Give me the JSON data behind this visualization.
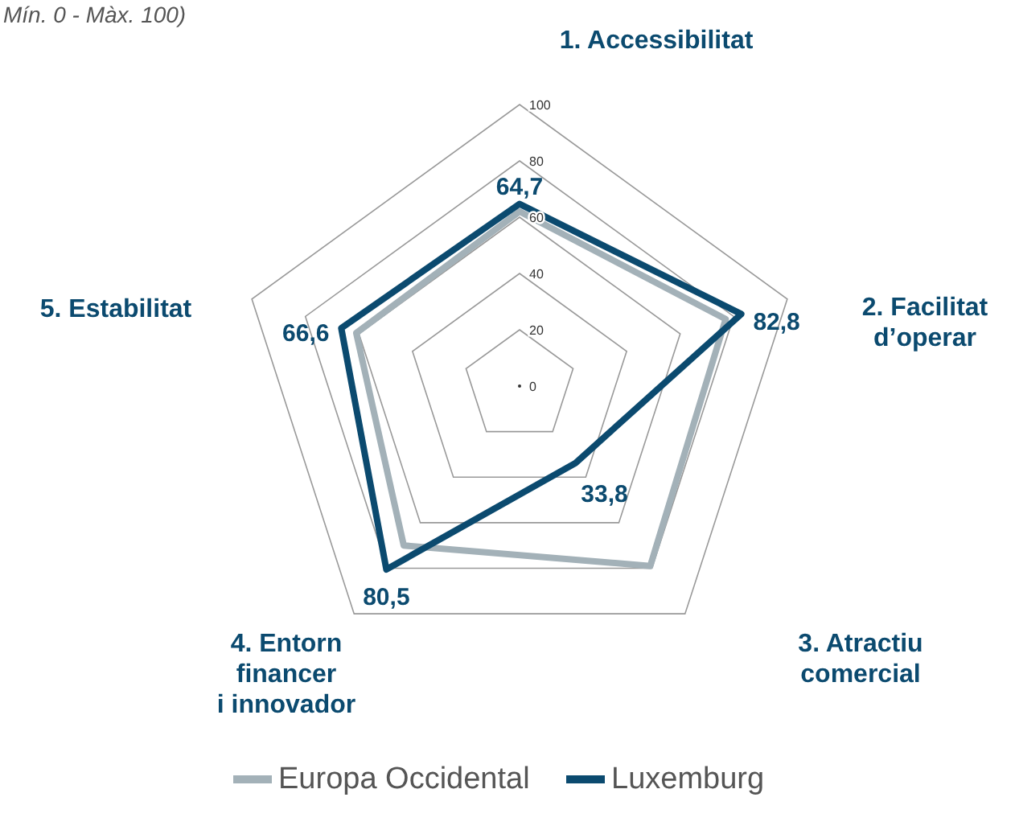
{
  "chart_data": {
    "type": "radar",
    "subtitle": "Mín. 0 - Màx. 100)",
    "categories": [
      "1. Accessibilitat",
      "2. Facilitat\nd’operar",
      "3. Atractiu\ncomercial",
      "4. Entorn\nfinancer\ni innovador",
      "5. Estabilitat"
    ],
    "ylim": [
      0,
      100
    ],
    "yticks": [
      0,
      20,
      40,
      60,
      80,
      100
    ],
    "legend": "bottom",
    "grid": true,
    "series": [
      {
        "name": "Europa Occidental",
        "color": "#a3b1b8",
        "values": [
          62,
          77,
          79,
          70,
          61
        ]
      },
      {
        "name": "Luxemburg",
        "color": "#0b4a6f",
        "values": [
          64.7,
          82.8,
          33.8,
          80.5,
          66.6
        ],
        "value_labels": [
          "64,7",
          "82,8",
          "33,8",
          "80,5",
          "66,6"
        ]
      }
    ]
  }
}
